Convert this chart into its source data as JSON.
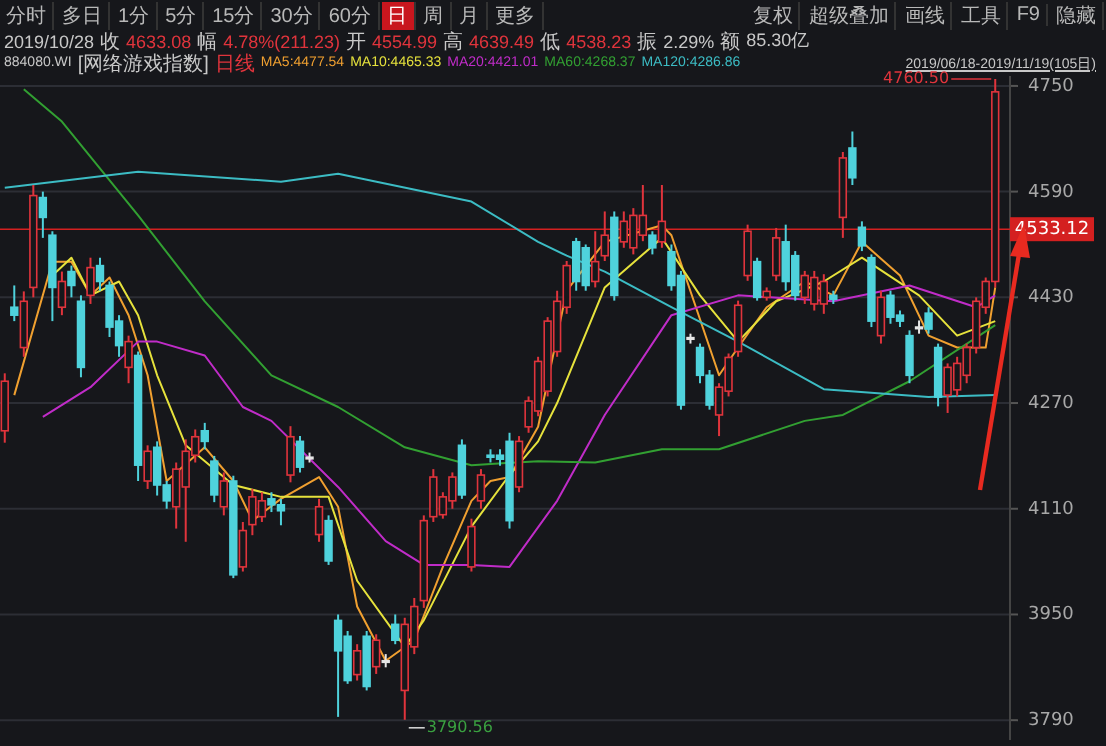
{
  "chart_data": {
    "type": "candlestick",
    "categories": [
      null,
      null,
      null,
      null,
      null,
      null,
      null,
      null,
      null,
      null,
      null,
      null,
      null,
      null,
      null,
      null,
      null,
      null,
      null,
      null,
      null,
      null,
      null,
      null,
      null,
      null,
      null,
      null,
      null,
      null,
      null,
      null,
      null,
      null,
      null,
      null,
      null,
      null,
      null,
      null,
      null,
      null,
      null,
      null,
      null,
      null,
      null,
      null,
      null,
      null,
      null,
      null,
      null,
      null,
      null,
      null,
      null,
      null,
      null,
      null,
      null,
      null,
      null,
      null,
      null,
      null,
      null,
      null,
      null,
      null,
      null,
      null,
      null,
      null,
      null,
      null,
      null,
      null,
      null,
      null,
      null,
      null,
      null,
      null,
      null,
      null,
      null,
      null,
      null,
      null,
      null,
      null,
      null,
      null,
      null,
      null,
      null,
      null,
      null,
      null,
      null,
      null,
      null,
      null,
      null
    ],
    "ylim": [
      3760,
      4765
    ],
    "yticks": [
      3790,
      3950,
      4110,
      4270,
      4430,
      4590,
      4750
    ],
    "grid": "y",
    "legend": "top",
    "tick_labels": "y",
    "series": [
      {
        "name": "日线",
        "color": "#e0343c",
        "ohlc": [
          [
            4228,
            4315,
            4210,
            4303
          ],
          [
            4415,
            4448,
            4394,
            4403
          ],
          [
            4354,
            4439,
            4340,
            4424
          ],
          [
            4445,
            4600,
            4430,
            4584
          ],
          [
            4581,
            4590,
            4520,
            4551
          ],
          [
            4524,
            4530,
            4394,
            4445
          ],
          [
            4415,
            4469,
            4403,
            4454
          ],
          [
            4469,
            4478,
            4430,
            4448
          ],
          [
            4424,
            4433,
            4309,
            4324
          ],
          [
            4433,
            4490,
            4420,
            4475
          ],
          [
            4478,
            4490,
            4440,
            4454
          ],
          [
            4448,
            4454,
            4370,
            4385
          ],
          [
            4394,
            4403,
            4340,
            4357
          ],
          [
            4324,
            4372,
            4300,
            4363
          ],
          [
            4342,
            4348,
            4152,
            4176
          ],
          [
            4152,
            4206,
            4140,
            4197
          ],
          [
            4203,
            4212,
            4130,
            4146
          ],
          [
            4146,
            4152,
            4110,
            4122
          ],
          [
            4113,
            4180,
            4080,
            4170
          ],
          [
            4143,
            4215,
            4060,
            4197
          ],
          [
            4191,
            4230,
            4180,
            4219
          ],
          [
            4228,
            4240,
            4200,
            4212
          ],
          [
            4182,
            4190,
            4120,
            4131
          ],
          [
            4113,
            4165,
            4100,
            4152
          ],
          [
            4152,
            4160,
            4005,
            4010
          ],
          [
            4022,
            4090,
            4015,
            4077
          ],
          [
            4086,
            4140,
            4070,
            4128
          ],
          [
            4098,
            4135,
            4090,
            4122
          ],
          [
            4125,
            4135,
            4105,
            4116
          ],
          [
            4116,
            4125,
            4085,
            4107
          ],
          [
            4161,
            4235,
            4150,
            4219
          ],
          [
            4212,
            4220,
            4165,
            4173
          ],
          [
            4188,
            4195,
            4180,
            4188
          ],
          [
            4071,
            4125,
            4060,
            4113
          ],
          [
            4092,
            4100,
            4025,
            4031
          ],
          [
            3941,
            3950,
            3795,
            3895
          ],
          [
            3917,
            3925,
            3845,
            3850
          ],
          [
            3859,
            3905,
            3850,
            3895
          ],
          [
            3917,
            3925,
            3835,
            3841
          ],
          [
            3871,
            3920,
            3860,
            3911
          ],
          [
            3880,
            3890,
            3870,
            3880
          ],
          [
            3935,
            3950,
            3905,
            3911
          ],
          [
            3835,
            3945,
            3790.56,
            3935
          ],
          [
            3901,
            3975,
            3890,
            3962
          ],
          [
            3971,
            4100,
            3960,
            4092
          ],
          [
            4098,
            4170,
            4090,
            4158
          ],
          [
            4101,
            4135,
            4095,
            4128
          ],
          [
            4122,
            4165,
            4110,
            4158
          ],
          [
            4206,
            4215,
            4125,
            4131
          ],
          [
            4022,
            4095,
            4015,
            4083
          ],
          [
            4122,
            4170,
            4110,
            4161
          ],
          [
            4191,
            4200,
            4180,
            4188
          ],
          [
            4191,
            4200,
            4175,
            4185
          ],
          [
            4212,
            4225,
            4080,
            4092
          ],
          [
            4143,
            4220,
            4135,
            4212
          ],
          [
            4234,
            4280,
            4225,
            4273
          ],
          [
            4258,
            4340,
            4250,
            4333
          ],
          [
            4288,
            4400,
            4280,
            4394
          ],
          [
            4348,
            4440,
            4340,
            4424
          ],
          [
            4415,
            4485,
            4405,
            4478
          ],
          [
            4514,
            4520,
            4440,
            4454
          ],
          [
            4505,
            4510,
            4440,
            4448
          ],
          [
            4454,
            4530,
            4445,
            4484
          ],
          [
            4493,
            4560,
            4485,
            4524
          ],
          [
            4551,
            4560,
            4425,
            4433
          ],
          [
            4514,
            4560,
            4505,
            4545
          ],
          [
            4505,
            4565,
            4495,
            4554
          ],
          [
            4524,
            4600,
            4515,
            4554
          ],
          [
            4524,
            4530,
            4495,
            4505
          ],
          [
            4514,
            4600,
            4505,
            4545
          ],
          [
            4499,
            4510,
            4440,
            4448
          ],
          [
            4463,
            4470,
            4260,
            4267
          ],
          [
            4369,
            4375,
            4360,
            4369
          ],
          [
            4354,
            4360,
            4300,
            4312
          ],
          [
            4312,
            4320,
            4260,
            4267
          ],
          [
            4252,
            4300,
            4220,
            4294
          ],
          [
            4288,
            4345,
            4280,
            4339
          ],
          [
            4348,
            4425,
            4340,
            4418
          ],
          [
            4463,
            4540,
            4455,
            4530
          ],
          [
            4484,
            4490,
            4425,
            4430
          ],
          [
            4430,
            4445,
            4425,
            4439
          ],
          [
            4463,
            4535,
            4455,
            4520
          ],
          [
            4514,
            4540,
            4440,
            4454
          ],
          [
            4493,
            4500,
            4425,
            4433
          ],
          [
            4430,
            4470,
            4420,
            4463
          ],
          [
            4420,
            4470,
            4410,
            4460
          ],
          [
            4420,
            4465,
            4405,
            4454
          ],
          [
            4433,
            4440,
            4420,
            4427
          ],
          [
            4551,
            4650,
            4520,
            4641
          ],
          [
            4656,
            4681,
            4600,
            4611
          ],
          [
            4536,
            4545,
            4500,
            4508
          ],
          [
            4490,
            4495,
            4385,
            4394
          ],
          [
            4372,
            4440,
            4360,
            4430
          ],
          [
            4433,
            4440,
            4390,
            4400
          ],
          [
            4403,
            4410,
            4385,
            4394
          ],
          [
            4372,
            4380,
            4300,
            4312
          ],
          [
            4385,
            4395,
            4375,
            4385
          ],
          [
            4406,
            4415,
            4375,
            4382
          ],
          [
            4354,
            4360,
            4265,
            4279
          ],
          [
            4282,
            4330,
            4255,
            4324
          ],
          [
            4290,
            4340,
            4280,
            4330
          ],
          [
            4312,
            4360,
            4300,
            4354
          ],
          [
            4354,
            4430,
            4345,
            4424
          ],
          [
            4415,
            4460,
            4405,
            4454
          ],
          [
            4454,
            4760.5,
            4445,
            4741
          ]
        ],
        "colors": [
          "#e0343c",
          "#4fd2dc",
          "#e0343c",
          "#e0343c",
          "#4fd2dc",
          "#4fd2dc",
          "#e0343c",
          "#4fd2dc",
          "#4fd2dc",
          "#e0343c",
          "#4fd2dc",
          "#4fd2dc",
          "#4fd2dc",
          "#e0343c",
          "#4fd2dc",
          "#e0343c",
          "#4fd2dc",
          "#4fd2dc",
          "#e0343c",
          "#e0343c",
          "#e0343c",
          "#4fd2dc",
          "#4fd2dc",
          "#e0343c",
          "#4fd2dc",
          "#e0343c",
          "#e0343c",
          "#e0343c",
          "#4fd2dc",
          "#4fd2dc",
          "#e0343c",
          "#4fd2dc",
          "#e6e6e6",
          "#e0343c",
          "#4fd2dc",
          "#4fd2dc",
          "#4fd2dc",
          "#e0343c",
          "#4fd2dc",
          "#e0343c",
          "#e6e6e6",
          "#4fd2dc",
          "#e0343c",
          "#e0343c",
          "#e0343c",
          "#e0343c",
          "#e0343c",
          "#e0343c",
          "#4fd2dc",
          "#e0343c",
          "#e0343c",
          "#4fd2dc",
          "#4fd2dc",
          "#4fd2dc",
          "#e0343c",
          "#e0343c",
          "#e0343c",
          "#e0343c",
          "#e0343c",
          "#e0343c",
          "#4fd2dc",
          "#4fd2dc",
          "#e0343c",
          "#e0343c",
          "#4fd2dc",
          "#e0343c",
          "#e0343c",
          "#e0343c",
          "#4fd2dc",
          "#e0343c",
          "#4fd2dc",
          "#4fd2dc",
          "#e6e6e6",
          "#4fd2dc",
          "#4fd2dc",
          "#e0343c",
          "#e0343c",
          "#e0343c",
          "#e0343c",
          "#4fd2dc",
          "#e0343c",
          "#e0343c",
          "#4fd2dc",
          "#4fd2dc",
          "#e0343c",
          "#e0343c",
          "#e0343c",
          "#4fd2dc",
          "#e0343c",
          "#4fd2dc",
          "#4fd2dc",
          "#4fd2dc",
          "#e0343c",
          "#4fd2dc",
          "#4fd2dc",
          "#4fd2dc",
          "#e6e6e6",
          "#4fd2dc",
          "#4fd2dc",
          "#e0343c",
          "#e0343c",
          "#e0343c",
          "#e0343c",
          "#e0343c",
          "#e0343c"
        ]
      },
      {
        "name": "MA5:4477.54",
        "type": "line",
        "color": "#f0a030",
        "values": [
          null,
          4282,
          null,
          null,
          null,
          4484,
          null,
          4484,
          null,
          4433,
          null,
          4460,
          null,
          4403,
          null,
          4312,
          null,
          4152,
          null,
          null,
          null,
          4203,
          null,
          null,
          4152,
          null,
          4092,
          null,
          null,
          4125,
          null,
          null,
          null,
          4158,
          null,
          4113,
          null,
          3962,
          null,
          null,
          3880,
          null,
          null,
          3911,
          null,
          null,
          4022,
          null,
          null,
          4122,
          null,
          4152,
          null,
          4158,
          null,
          null,
          4234,
          null,
          null,
          4440,
          null,
          null,
          null,
          4514,
          null,
          null,
          null,
          null,
          null,
          4539,
          4524,
          null,
          null,
          null,
          null,
          4312,
          null,
          4354,
          null,
          null,
          4415,
          null,
          null,
          null,
          4454,
          null,
          null,
          4433,
          null,
          null,
          4514,
          null,
          null,
          null,
          4463,
          null,
          null,
          4372,
          null,
          null,
          4354,
          null,
          null,
          4354,
          4445
        ]
      },
      {
        "name": "MA10:4465.33",
        "type": "line",
        "color": "#e6e23c",
        "values": [
          null,
          null,
          null,
          null,
          null,
          4463,
          null,
          4490,
          null,
          4433,
          null,
          null,
          4454,
          null,
          4403,
          null,
          4312,
          null,
          null,
          4206,
          null,
          null,
          null,
          null,
          4146,
          null,
          null,
          null,
          null,
          4128,
          null,
          null,
          null,
          null,
          4128,
          null,
          null,
          4001,
          null,
          null,
          null,
          null,
          3901,
          null,
          3941,
          null,
          null,
          null,
          null,
          4083,
          null,
          null,
          null,
          4161,
          null,
          null,
          4212,
          null,
          4270,
          null,
          null,
          null,
          null,
          4445,
          null,
          null,
          null,
          null,
          null,
          4520,
          null,
          null,
          null,
          4433,
          null,
          null,
          null,
          4363,
          null,
          null,
          null,
          4424,
          null,
          null,
          null,
          null,
          4454,
          null,
          null,
          null,
          4490,
          null,
          null,
          null,
          null,
          null,
          4433,
          null,
          null,
          null,
          4372,
          null,
          null,
          null,
          4394
        ]
      },
      {
        "name": "MA20:4421.01",
        "type": "line",
        "color": "#c02cc8",
        "values": [
          null,
          null,
          null,
          null,
          4249,
          null,
          null,
          null,
          null,
          4294,
          null,
          null,
          null,
          null,
          4363,
          null,
          4363,
          null,
          null,
          null,
          null,
          4342,
          null,
          null,
          null,
          4264,
          null,
          null,
          4243,
          null,
          null,
          null,
          null,
          null,
          null,
          4143,
          null,
          null,
          null,
          null,
          4061,
          null,
          null,
          null,
          4025,
          null,
          null,
          null,
          null,
          4025,
          null,
          null,
          null,
          4022,
          null,
          null,
          null,
          null,
          4122,
          null,
          null,
          null,
          null,
          4252,
          null,
          null,
          null,
          null,
          null,
          null,
          4403,
          null,
          null,
          null,
          null,
          null,
          null,
          4433,
          null,
          null,
          null,
          null,
          null,
          null,
          null,
          null,
          null,
          4424,
          null,
          null,
          null,
          null,
          null,
          null,
          null,
          4448,
          null,
          null,
          null,
          null,
          null,
          null,
          4415,
          null,
          4433
        ]
      },
      {
        "name": "MA60:4268.37",
        "type": "line",
        "color": "#32a032",
        "values": [
          null,
          null,
          4745,
          null,
          null,
          null,
          4696,
          null,
          null,
          null,
          null,
          null,
          null,
          null,
          4554,
          null,
          null,
          null,
          null,
          null,
          null,
          4424,
          null,
          null,
          null,
          null,
          null,
          null,
          4312,
          null,
          null,
          null,
          null,
          null,
          null,
          4264,
          null,
          null,
          null,
          null,
          null,
          null,
          4203,
          null,
          null,
          null,
          null,
          null,
          null,
          4176,
          null,
          null,
          null,
          null,
          null,
          null,
          4182,
          null,
          null,
          null,
          null,
          null,
          4180,
          null,
          null,
          null,
          null,
          null,
          null,
          4200,
          null,
          null,
          null,
          null,
          null,
          4200,
          null,
          null,
          null,
          null,
          null,
          null,
          null,
          null,
          4243,
          null,
          null,
          null,
          4252,
          null,
          null,
          null,
          null,
          null,
          null,
          4303,
          null,
          null,
          null,
          null,
          null,
          null,
          null,
          null,
          4388
        ]
      },
      {
        "name": "MA120:4286.86",
        "type": "line",
        "color": "#3cbcc4",
        "values": [
          4596,
          null,
          null,
          null,
          null,
          null,
          null,
          null,
          null,
          null,
          null,
          null,
          null,
          null,
          4620,
          null,
          null,
          null,
          null,
          null,
          null,
          null,
          null,
          null,
          null,
          null,
          null,
          null,
          null,
          4605,
          null,
          null,
          null,
          null,
          null,
          4617,
          null,
          null,
          null,
          null,
          null,
          null,
          null,
          null,
          null,
          null,
          null,
          null,
          null,
          4575,
          null,
          null,
          null,
          null,
          null,
          null,
          4514,
          null,
          null,
          4493,
          null,
          null,
          null,
          4469,
          null,
          null,
          null,
          null,
          null,
          null,
          4415,
          null,
          null,
          null,
          null,
          null,
          null,
          4363,
          null,
          null,
          null,
          null,
          null,
          null,
          null,
          null,
          4291,
          null,
          null,
          null,
          null,
          null,
          null,
          null,
          null,
          null,
          null,
          4279,
          null,
          null,
          null,
          null,
          null,
          null,
          4282
        ]
      }
    ],
    "ref_lines": [
      {
        "axis": "y",
        "value": 4533.12,
        "label": "4533.12",
        "color": "#d42020"
      }
    ],
    "annotations": [
      "分时",
      "多日",
      "1分",
      "5分",
      "15分",
      "30分",
      "60分",
      "日",
      "周",
      "月",
      "更多",
      "复权",
      "超级叠加",
      "画线",
      "工具",
      "F9",
      "隐藏",
      "2019/10/28",
      "收",
      "4633.08",
      "幅",
      "4.78%(211.23)",
      "开",
      "4554.99",
      "高",
      "4639.49",
      "低",
      "4538.23",
      "振",
      "2.29%",
      "额",
      "85.30亿",
      "884080.WI",
      "[网络游戏指数]",
      "2019/06/18-2019/11/19(105日)",
      "4760.50",
      "3790.56"
    ]
  }
}
